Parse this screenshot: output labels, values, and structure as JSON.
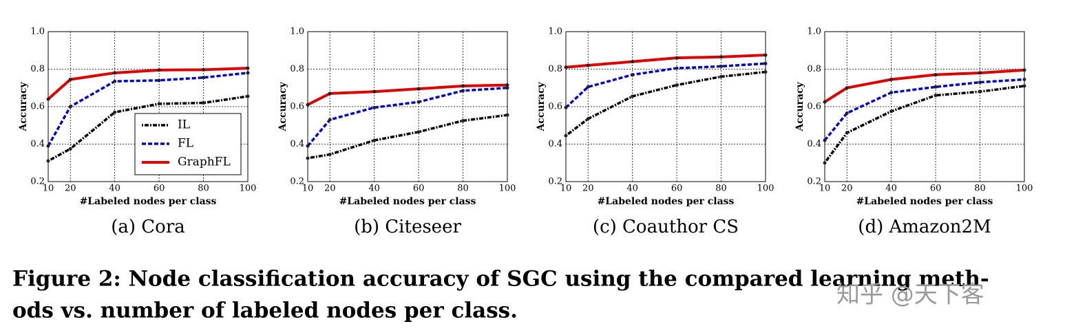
{
  "chart_data": [
    {
      "type": "line",
      "caption": "(a) Cora",
      "xlabel": "#Labeled nodes per class",
      "ylabel": "Accuracy",
      "x": [
        10,
        20,
        40,
        60,
        80,
        100
      ],
      "xlim": [
        10,
        100
      ],
      "xticks": [
        10,
        20,
        40,
        60,
        80,
        100
      ],
      "ylim": [
        0.2,
        1
      ],
      "yticks": [
        0.2,
        0.4,
        0.6,
        0.8,
        {
          "value": 1,
          "label": "1.0"
        }
      ],
      "grid": true,
      "legend": "lower right",
      "series": [
        {
          "name": "IL",
          "color": "#000000",
          "style": "dashdot",
          "values": [
            0.31,
            0.375,
            0.57,
            0.615,
            0.62,
            0.655
          ]
        },
        {
          "name": "FL",
          "color": "#0000cc",
          "style": "dashed",
          "values": [
            0.39,
            0.6,
            0.735,
            0.74,
            0.755,
            0.78
          ]
        },
        {
          "name": "GraphFL",
          "color": "#dd0000",
          "style": "solid",
          "values": [
            0.64,
            0.745,
            0.78,
            0.795,
            0.797,
            0.805
          ]
        }
      ]
    },
    {
      "type": "line",
      "caption": "(b) Citeseer",
      "xlabel": "#Labeled nodes per class",
      "ylabel": "Accuracy",
      "x": [
        10,
        20,
        40,
        60,
        80,
        100
      ],
      "xlim": [
        10,
        100
      ],
      "xticks": [
        10,
        20,
        40,
        60,
        80,
        100
      ],
      "ylim": [
        0.2,
        1
      ],
      "yticks": [
        0.2,
        0.4,
        0.6,
        0.8,
        {
          "value": 1,
          "label": "1.0"
        }
      ],
      "grid": true,
      "legend": false,
      "series": [
        {
          "color": "#000000",
          "style": "dashdot",
          "values": [
            0.325,
            0.345,
            0.42,
            0.465,
            0.525,
            0.555
          ]
        },
        {
          "color": "#0000cc",
          "style": "dashed",
          "values": [
            0.39,
            0.53,
            0.595,
            0.625,
            0.685,
            0.7
          ]
        },
        {
          "color": "#dd0000",
          "style": "solid",
          "values": [
            0.61,
            0.67,
            0.68,
            0.695,
            0.71,
            0.715
          ]
        }
      ]
    },
    {
      "type": "line",
      "caption": "(c) Coauthor CS",
      "xlabel": "#Labeled nodes per class",
      "ylabel": "Accuracy",
      "x": [
        10,
        20,
        40,
        60,
        80,
        100
      ],
      "xlim": [
        10,
        100
      ],
      "xticks": [
        10,
        20,
        40,
        60,
        80,
        100
      ],
      "ylim": [
        0.2,
        1
      ],
      "yticks": [
        0.2,
        0.4,
        0.6,
        0.8,
        {
          "value": 1,
          "label": "1.0"
        }
      ],
      "grid": true,
      "legend": false,
      "series": [
        {
          "color": "#000000",
          "style": "dashdot",
          "values": [
            0.445,
            0.535,
            0.655,
            0.715,
            0.76,
            0.785
          ]
        },
        {
          "color": "#0000cc",
          "style": "dashed",
          "values": [
            0.595,
            0.705,
            0.77,
            0.805,
            0.815,
            0.83
          ]
        },
        {
          "color": "#dd0000",
          "style": "solid",
          "values": [
            0.81,
            0.82,
            0.84,
            0.86,
            0.865,
            0.875
          ]
        }
      ]
    },
    {
      "type": "line",
      "caption": "(d) Amazon2M",
      "xlabel": "#Labeled nodes per class",
      "ylabel": "Accuracy",
      "x": [
        10,
        20,
        40,
        60,
        80,
        100
      ],
      "xlim": [
        10,
        100
      ],
      "xticks": [
        10,
        20,
        40,
        60,
        80,
        100
      ],
      "ylim": [
        0.2,
        1
      ],
      "yticks": [
        0.2,
        0.4,
        0.6,
        0.8,
        {
          "value": 1,
          "label": "1.0"
        }
      ],
      "grid": true,
      "legend": false,
      "series": [
        {
          "color": "#000000",
          "style": "dashdot",
          "values": [
            0.3,
            0.46,
            0.575,
            0.66,
            0.68,
            0.71
          ]
        },
        {
          "color": "#0000cc",
          "style": "dashed",
          "values": [
            0.42,
            0.565,
            0.675,
            0.705,
            0.73,
            0.745
          ]
        },
        {
          "color": "#dd0000",
          "style": "solid",
          "values": [
            0.625,
            0.7,
            0.745,
            0.77,
            0.78,
            0.795
          ]
        }
      ]
    }
  ],
  "caption": {
    "lines": [
      "Figure 2: Node classification accuracy of SGC using the compared learning meth-",
      "ods vs. number of labeled nodes per class."
    ]
  },
  "watermark": "知乎 @天下客"
}
